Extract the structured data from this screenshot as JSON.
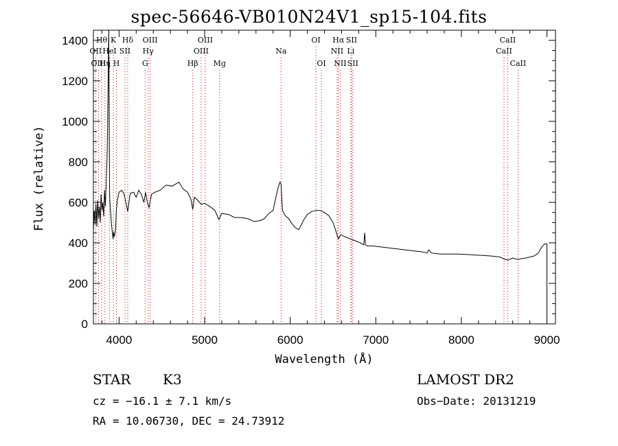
{
  "title": "spec-56646-VB010N24V1_sp15-104.fits",
  "info": {
    "class": "STAR",
    "subclass": "K3",
    "survey": "LAMOST DR2",
    "redshift": "cz = −16.1 ± 7.1 km/s",
    "obs_date": "Obs−Date: 20131219",
    "coords": "RA =  10.06730, DEC =  24.73912"
  },
  "colors": {
    "spectrum": "#000000",
    "line_marker": "#cc0000",
    "axes": "#000000"
  },
  "chart_data": {
    "type": "line",
    "title": "spec-56646-VB010N24V1_sp15-104.fits",
    "xlabel": "Wavelength (Å)",
    "ylabel": "Flux (relative)",
    "xlim": [
      3700,
      9100
    ],
    "ylim": [
      0,
      1450
    ],
    "xticks": [
      4000,
      5000,
      6000,
      7000,
      8000,
      9000
    ],
    "yticks": [
      0,
      200,
      400,
      600,
      800,
      1000,
      1200,
      1400
    ],
    "grid": false,
    "series": [
      {
        "x": [
          3700,
          3710,
          3720,
          3730,
          3740,
          3750,
          3760,
          3770,
          3780,
          3790,
          3800,
          3810,
          3820,
          3830,
          3840,
          3850,
          3860,
          3865,
          3870,
          3875,
          3880,
          3885,
          3890,
          3900,
          3910,
          3920,
          3930,
          3935,
          3945,
          3960,
          3968,
          3980,
          4000,
          4030,
          4060,
          4101,
          4130,
          4170,
          4200,
          4230,
          4260,
          4290,
          4310,
          4330,
          4350,
          4380,
          4420,
          4480,
          4550,
          4620,
          4700,
          4750,
          4800,
          4840,
          4861,
          4880,
          4920,
          4960,
          5000,
          5060,
          5120,
          5167,
          5200,
          5280,
          5350,
          5420,
          5500,
          5580,
          5650,
          5700,
          5750,
          5800,
          5830,
          5860,
          5880,
          5893,
          5910,
          5940,
          5980,
          6020,
          6060,
          6100,
          6130,
          6160,
          6200,
          6250,
          6300,
          6350,
          6400,
          6450,
          6500,
          6540,
          6563,
          6590,
          6640,
          6700,
          6760,
          6820,
          6860,
          6870,
          6880,
          6900,
          6960,
          7050,
          7150,
          7250,
          7350,
          7450,
          7550,
          7600,
          7620,
          7650,
          7750,
          7850,
          7950,
          8050,
          8150,
          8250,
          8350,
          8450,
          8498,
          8542,
          8600,
          8662,
          8700,
          8750,
          8800,
          8850,
          8900,
          8940,
          8960,
          8980,
          8990,
          9000
        ],
        "values": [
          460,
          560,
          490,
          590,
          480,
          610,
          520,
          580,
          500,
          640,
          560,
          600,
          530,
          660,
          580,
          700,
          820,
          950,
          1120,
          1300,
          1450,
          900,
          620,
          560,
          500,
          455,
          420,
          455,
          430,
          470,
          560,
          610,
          650,
          660,
          640,
          555,
          645,
          650,
          625,
          660,
          640,
          600,
          650,
          600,
          575,
          640,
          650,
          660,
          685,
          680,
          700,
          665,
          650,
          615,
          565,
          625,
          610,
          590,
          595,
          580,
          560,
          515,
          545,
          540,
          525,
          525,
          520,
          505,
          510,
          520,
          545,
          560,
          620,
          675,
          700,
          690,
          560,
          535,
          520,
          495,
          475,
          465,
          490,
          515,
          540,
          555,
          560,
          560,
          550,
          535,
          500,
          450,
          420,
          440,
          430,
          420,
          410,
          400,
          390,
          450,
          390,
          385,
          385,
          380,
          375,
          370,
          365,
          360,
          355,
          350,
          365,
          350,
          345,
          345,
          345,
          343,
          340,
          338,
          335,
          330,
          320,
          315,
          325,
          318,
          322,
          325,
          330,
          335,
          350,
          380,
          390,
          395,
          395,
          395
        ]
      }
    ],
    "line_markers": [
      {
        "name": "Hθ",
        "wave": 3797,
        "row": 0
      },
      {
        "name": "OII",
        "wave": 3727,
        "row": 1
      },
      {
        "name": "OIII",
        "wave": 3760,
        "row": 2
      },
      {
        "name": "Hη",
        "wave": 3835,
        "row": 2
      },
      {
        "name": "HeI",
        "wave": 3889,
        "row": 1
      },
      {
        "name": "K",
        "wave": 3934,
        "row": 0
      },
      {
        "name": "H",
        "wave": 3969,
        "row": 2
      },
      {
        "name": "SII",
        "wave": 4069,
        "row": 1
      },
      {
        "name": "Hδ",
        "wave": 4101,
        "row": 0
      },
      {
        "name": "OIII",
        "wave": 4363,
        "row": 0
      },
      {
        "name": "Hγ",
        "wave": 4340,
        "row": 1
      },
      {
        "name": "G",
        "wave": 4305,
        "row": 2
      },
      {
        "name": "Hβ",
        "wave": 4861,
        "row": 2
      },
      {
        "name": "OIII",
        "wave": 5007,
        "row": 0
      },
      {
        "name": "OIII",
        "wave": 4959,
        "row": 1
      },
      {
        "name": "Mg",
        "wave": 5175,
        "row": 2
      },
      {
        "name": "Na",
        "wave": 5893,
        "row": 1
      },
      {
        "name": "OI",
        "wave": 6300,
        "row": 0
      },
      {
        "name": "OI",
        "wave": 6364,
        "row": 2
      },
      {
        "name": "Hα",
        "wave": 6563,
        "row": 0
      },
      {
        "name": "NII",
        "wave": 6548,
        "row": 1
      },
      {
        "name": "NII",
        "wave": 6584,
        "row": 2
      },
      {
        "name": "SII",
        "wave": 6717,
        "row": 0
      },
      {
        "name": "SII",
        "wave": 6731,
        "row": 2
      },
      {
        "name": "Li",
        "wave": 6708,
        "row": 1
      },
      {
        "name": "CaII",
        "wave": 8542,
        "row": 0
      },
      {
        "name": "CaII",
        "wave": 8498,
        "row": 1
      },
      {
        "name": "CaII",
        "wave": 8662,
        "row": 2
      }
    ]
  }
}
